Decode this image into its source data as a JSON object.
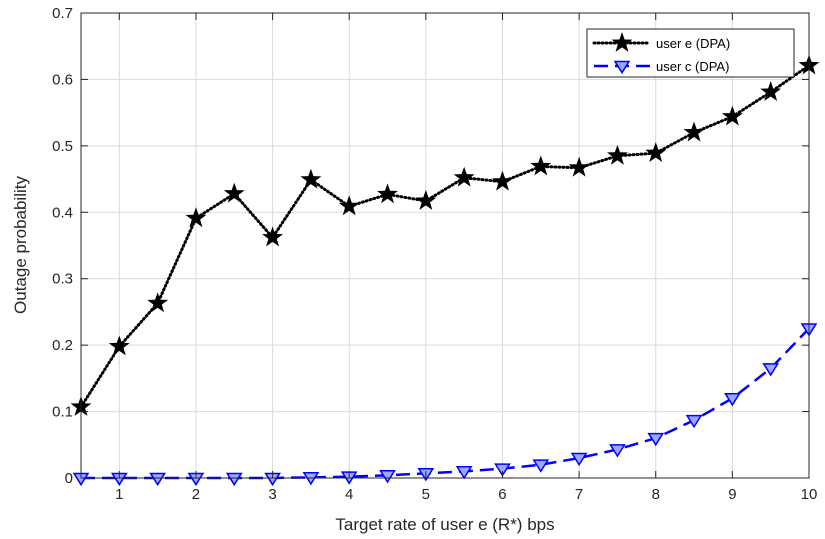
{
  "chart_data": {
    "type": "line",
    "title": "",
    "xlabel": "Target rate of user e (R*) bps",
    "ylabel": "Outage probability",
    "xlim": [
      0.5,
      10
    ],
    "ylim": [
      0,
      0.7
    ],
    "xticks": [
      1,
      2,
      3,
      4,
      5,
      6,
      7,
      8,
      9,
      10
    ],
    "yticks": [
      0,
      0.1,
      0.2,
      0.3,
      0.4,
      0.5,
      0.6,
      0.7
    ],
    "xtick_labels": [
      "1",
      "2",
      "3",
      "4",
      "5",
      "6",
      "7",
      "8",
      "9",
      "10"
    ],
    "ytick_labels": [
      "0",
      "0.1",
      "0.2",
      "0.3",
      "0.4",
      "0.5",
      "0.6",
      "0.7"
    ],
    "grid": true,
    "legend_position": "top-right",
    "x": [
      0.5,
      1,
      1.5,
      2,
      2.5,
      3,
      3.5,
      4,
      4.5,
      5,
      5.5,
      6,
      6.5,
      7,
      7.5,
      8,
      8.5,
      9,
      9.5,
      10
    ],
    "series": [
      {
        "name": "user e (DPA)",
        "color": "#000000",
        "line_style": "dotted",
        "marker": "star",
        "values": [
          0.107,
          0.198,
          0.263,
          0.391,
          0.428,
          0.362,
          0.449,
          0.409,
          0.427,
          0.417,
          0.452,
          0.446,
          0.469,
          0.467,
          0.485,
          0.489,
          0.52,
          0.544,
          0.581,
          0.621
        ]
      },
      {
        "name": "user c (DPA)",
        "color": "#0000ff",
        "line_style": "dashed",
        "marker": "triangle-down",
        "values": [
          0.0,
          0.0,
          0.0,
          0.0,
          0.0,
          0.0,
          0.001,
          0.002,
          0.004,
          0.007,
          0.01,
          0.014,
          0.02,
          0.03,
          0.043,
          0.06,
          0.087,
          0.12,
          0.165,
          0.225
        ]
      }
    ]
  }
}
